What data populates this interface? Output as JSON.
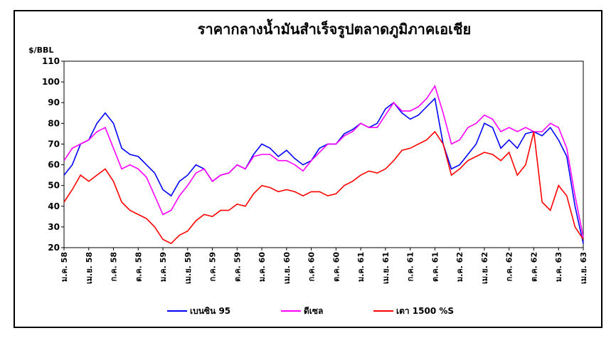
{
  "chart_data": {
    "type": "line",
    "title": "ราคากลางน้ำมันสำเร็จรูปตลาดภูมิภาคเอเชีย",
    "y_label": "$/BBL",
    "categories": [
      "ม.ค. 58",
      null,
      null,
      "เม.ย. 58",
      null,
      null,
      "ก.ค. 58",
      null,
      null,
      "ต.ค. 58",
      null,
      null,
      "ม.ค. 59",
      null,
      null,
      "เม.ย. 59",
      null,
      null,
      "ก.ค. 59",
      null,
      null,
      "ต.ค. 59",
      null,
      null,
      "ม.ค. 60",
      null,
      null,
      "เม.ย. 60",
      null,
      null,
      "ก.ค. 60",
      null,
      null,
      "ต.ค. 60",
      null,
      null,
      "ม.ค. 61",
      null,
      null,
      "เม.ย. 61",
      null,
      null,
      "ก.ค. 61",
      null,
      null,
      "ต.ค. 61",
      null,
      null,
      "ม.ค. 62",
      null,
      null,
      "เม.ย. 62",
      null,
      null,
      "ก.ค. 62",
      null,
      null,
      "ต.ค. 62",
      null,
      null,
      "ม.ค. 63",
      null,
      null,
      "เม.ย. 63"
    ],
    "series": [
      {
        "name": "เบนซิน 95",
        "color": "#0000ff",
        "values": [
          55,
          60,
          70,
          72,
          80,
          85,
          80,
          68,
          65,
          64,
          60,
          56,
          48,
          45,
          52,
          55,
          60,
          58,
          52,
          55,
          56,
          60,
          58,
          65,
          70,
          68,
          64,
          67,
          63,
          60,
          62,
          68,
          70,
          70,
          75,
          77,
          80,
          78,
          80,
          87,
          90,
          85,
          82,
          84,
          88,
          92,
          70,
          58,
          60,
          65,
          70,
          80,
          78,
          68,
          72,
          68,
          75,
          76,
          74,
          78,
          72,
          64,
          40,
          22
        ]
      },
      {
        "name": "ดีเซล",
        "color": "#ff00ff",
        "values": [
          62,
          68,
          70,
          72,
          76,
          78,
          68,
          58,
          60,
          58,
          54,
          45,
          36,
          38,
          45,
          50,
          56,
          58,
          52,
          55,
          56,
          60,
          58,
          64,
          65,
          65,
          62,
          62,
          60,
          57,
          62,
          66,
          70,
          70,
          74,
          76,
          80,
          78,
          78,
          84,
          90,
          86,
          86,
          88,
          92,
          98,
          85,
          70,
          72,
          78,
          80,
          84,
          82,
          76,
          78,
          76,
          78,
          76,
          76,
          80,
          78,
          68,
          45,
          25
        ]
      },
      {
        "name": "เตา 1500 %S",
        "color": "#ff0000",
        "values": [
          42,
          48,
          55,
          52,
          55,
          58,
          52,
          42,
          38,
          36,
          34,
          30,
          24,
          22,
          26,
          28,
          33,
          36,
          35,
          38,
          38,
          41,
          40,
          46,
          50,
          49,
          47,
          48,
          47,
          45,
          47,
          47,
          45,
          46,
          50,
          52,
          55,
          57,
          56,
          58,
          62,
          67,
          68,
          70,
          72,
          76,
          70,
          55,
          58,
          62,
          64,
          66,
          65,
          62,
          66,
          55,
          60,
          76,
          42,
          38,
          50,
          45,
          30,
          24
        ]
      }
    ],
    "ylim": [
      20,
      110
    ],
    "yticks": [
      20,
      30,
      40,
      50,
      60,
      70,
      80,
      90,
      100,
      110
    ],
    "grid": false
  }
}
